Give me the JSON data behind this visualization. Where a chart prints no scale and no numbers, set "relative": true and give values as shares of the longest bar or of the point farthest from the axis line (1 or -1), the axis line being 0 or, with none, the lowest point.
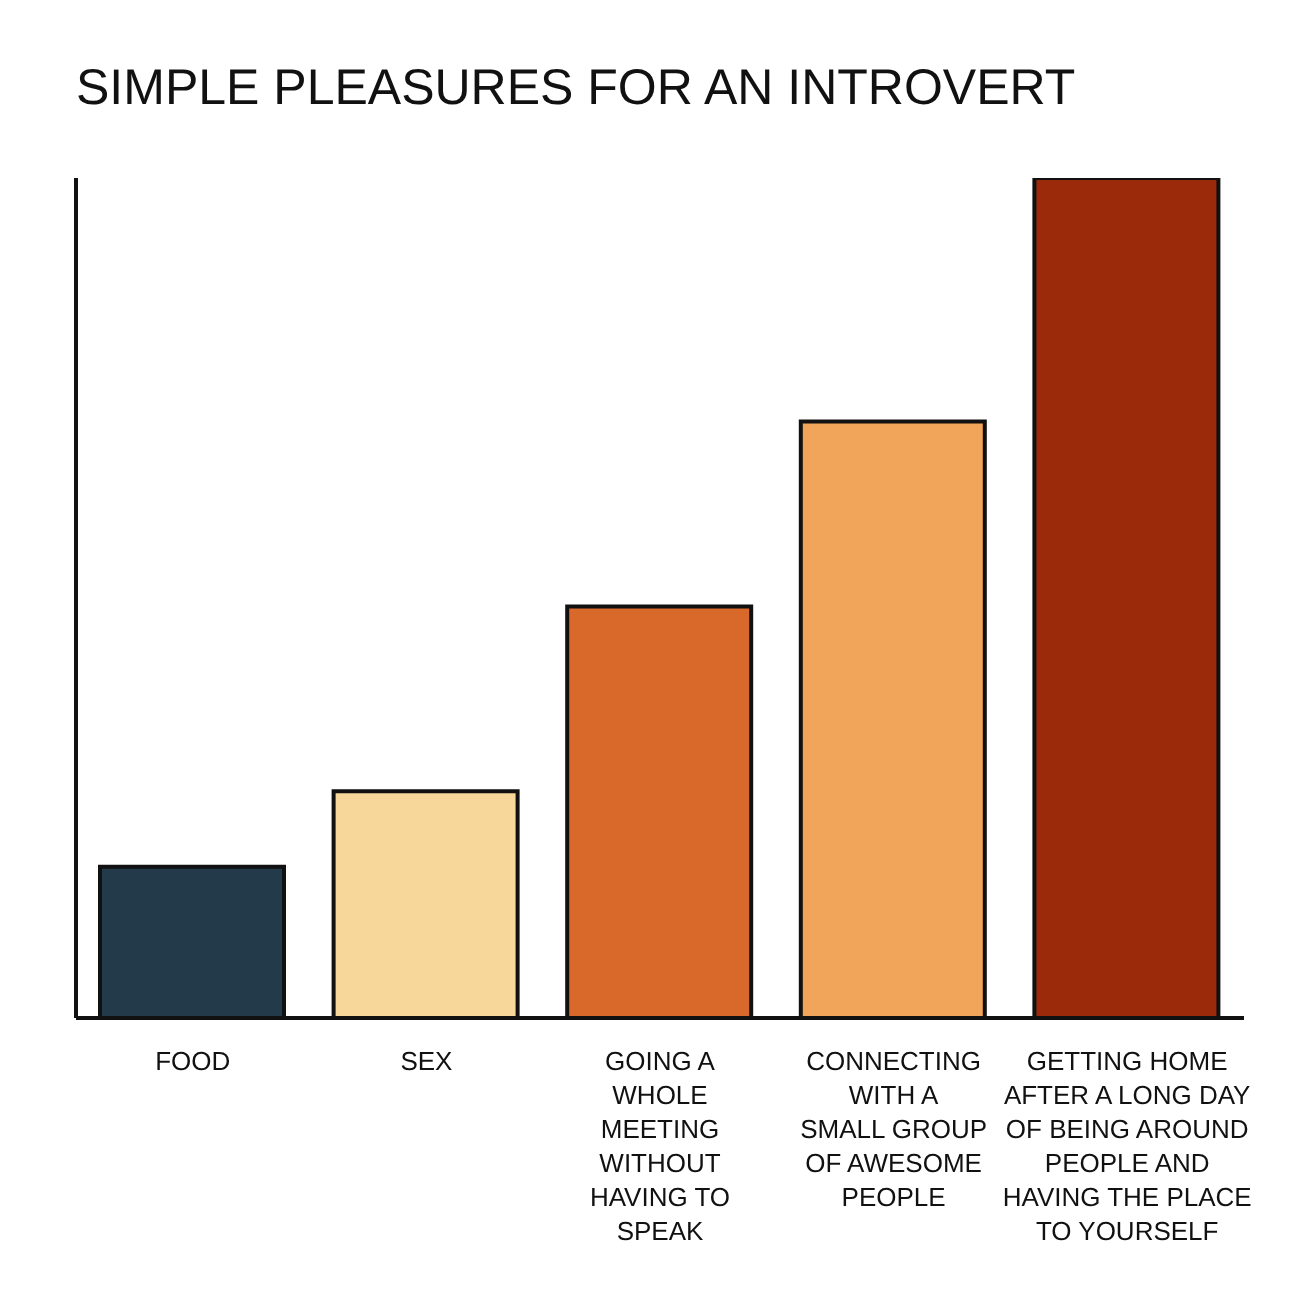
{
  "chart_data": {
    "type": "bar",
    "title": "SIMPLE PLEASURES FOR AN INTROVERT",
    "relative": true,
    "categories": [
      "FOOD",
      "SEX",
      "GOING A WHOLE MEETING WITHOUT HAVING TO SPEAK",
      "CONNECTING WITH A SMALL GROUP OF AWESOME PEOPLE",
      "GETTING HOME AFTER A LONG DAY OF BEING AROUND PEOPLE AND HAVING THE PLACE TO YOURSELF"
    ],
    "values": [
      0.18,
      0.27,
      0.49,
      0.71,
      1
    ],
    "colors": [
      "#233a4a",
      "#f8d89a",
      "#d8692a",
      "#f0a55a",
      "#9a2a0a"
    ],
    "grid": false,
    "legend": false
  }
}
